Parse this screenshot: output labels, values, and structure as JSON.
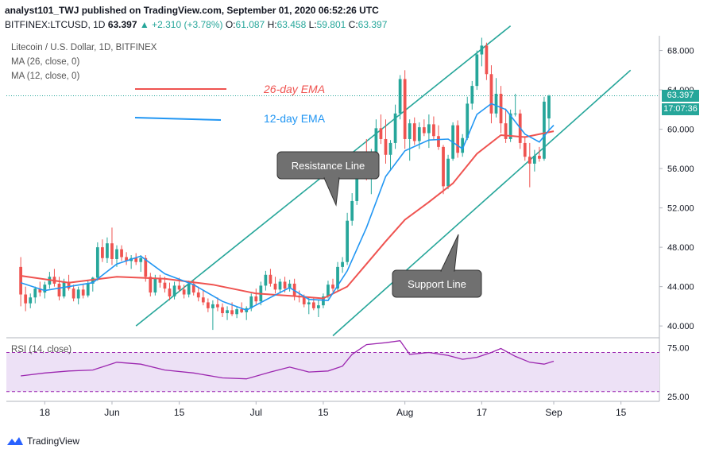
{
  "header": {
    "line1": "analyst101_TWJ published on TradingView.com, September 01, 2020 06:52:26 UTC",
    "symbol": "BITFINEX:LTCUSD, 1D",
    "price": "63.397",
    "change": "+2.310 (+3.78%)",
    "o_label": "O:",
    "o": "61.087",
    "h_label": "H:",
    "h": "63.458",
    "l_label": "L:",
    "l": "59.801",
    "c_label": "C:",
    "c": "63.397"
  },
  "legend": {
    "title": "Litecoin / U.S. Dollar, 1D, BITFINEX",
    "ma26": "MA (26, close, 0)",
    "ma12": "MA (12, close, 0)",
    "rsi": "RSI (14, close)"
  },
  "annotations": {
    "ema26": "26-day EMA",
    "ema12": "12-day EMA",
    "resistance": "Resistance Line",
    "support": "Support Line"
  },
  "tags": {
    "price": "63.397",
    "countdown": "17:07:36"
  },
  "footer": {
    "brand": "TradingView"
  },
  "colors": {
    "up": "#26a69a",
    "down": "#ef5350",
    "ema26": "#ef5350",
    "ema12": "#2196f3",
    "trendline": "#26a69a",
    "rsi": "#9c27b0",
    "rsi_band": "#e9dbf5",
    "callout": "#707070"
  },
  "chart_data": {
    "type": "candlestick",
    "price_axis": {
      "ticks": [
        "68.000",
        "64.000",
        "60.000",
        "56.000",
        "52.000",
        "48.000",
        "44.000",
        "40.000"
      ],
      "range": [
        38.8,
        69.5
      ]
    },
    "rsi_axis": {
      "ticks": [
        "75.00",
        "25.00"
      ],
      "range": [
        20,
        85
      ]
    },
    "x_ticks": [
      {
        "label": "18",
        "i": 5
      },
      {
        "label": "Jun",
        "i": 19
      },
      {
        "label": "15",
        "i": 33
      },
      {
        "label": "Jul",
        "i": 49
      },
      {
        "label": "15",
        "i": 63
      },
      {
        "label": "Aug",
        "i": 80
      },
      {
        "label": "17",
        "i": 96
      },
      {
        "label": "Sep",
        "i": 111
      },
      {
        "label": "15",
        "i": 125
      }
    ],
    "x_range": [
      -3,
      133
    ],
    "candles": [
      [
        46.0,
        47.0,
        42.0,
        43.2
      ],
      [
        43.2,
        44.0,
        41.5,
        42.3
      ],
      [
        42.3,
        43.3,
        41.8,
        42.9
      ],
      [
        42.9,
        44.0,
        42.3,
        43.8
      ],
      [
        43.8,
        44.5,
        43.0,
        43.4
      ],
      [
        43.4,
        44.5,
        42.8,
        44.2
      ],
      [
        44.2,
        45.5,
        43.8,
        45.0
      ],
      [
        45.0,
        45.8,
        44.0,
        44.3
      ],
      [
        44.3,
        45.0,
        42.6,
        43.0
      ],
      [
        43.0,
        44.8,
        42.8,
        44.5
      ],
      [
        44.5,
        45.2,
        43.6,
        43.8
      ],
      [
        43.8,
        44.2,
        42.5,
        42.8
      ],
      [
        42.8,
        44.0,
        42.2,
        43.7
      ],
      [
        43.7,
        44.3,
        42.8,
        43.1
      ],
      [
        43.1,
        44.6,
        42.9,
        44.3
      ],
      [
        44.3,
        45.0,
        43.5,
        44.9
      ],
      [
        44.9,
        48.5,
        44.6,
        48.0
      ],
      [
        48.0,
        48.8,
        46.5,
        46.9
      ],
      [
        46.9,
        49.0,
        46.4,
        48.4
      ],
      [
        48.4,
        50.0,
        46.2,
        46.8
      ],
      [
        46.8,
        48.2,
        46.0,
        47.8
      ],
      [
        47.8,
        48.2,
        46.6,
        47.0
      ],
      [
        47.0,
        47.5,
        46.2,
        46.6
      ],
      [
        46.6,
        47.2,
        45.8,
        46.9
      ],
      [
        46.9,
        47.4,
        46.2,
        46.5
      ],
      [
        46.5,
        47.2,
        45.5,
        46.9
      ],
      [
        46.9,
        47.2,
        44.5,
        45.0
      ],
      [
        45.0,
        45.4,
        43.0,
        43.4
      ],
      [
        43.4,
        45.2,
        43.1,
        44.9
      ],
      [
        44.9,
        45.2,
        43.9,
        44.4
      ],
      [
        44.4,
        45.0,
        43.4,
        43.8
      ],
      [
        43.8,
        44.4,
        42.6,
        43.0
      ],
      [
        43.0,
        44.5,
        42.7,
        44.1
      ],
      [
        44.1,
        44.9,
        43.5,
        43.7
      ],
      [
        43.7,
        44.2,
        42.8,
        43.2
      ],
      [
        43.2,
        44.6,
        42.9,
        44.3
      ],
      [
        44.3,
        44.7,
        43.1,
        43.4
      ],
      [
        43.4,
        44.0,
        42.5,
        42.9
      ],
      [
        42.9,
        43.6,
        42.1,
        42.4
      ],
      [
        42.4,
        42.8,
        41.4,
        41.8
      ],
      [
        41.8,
        42.6,
        39.6,
        42.2
      ],
      [
        42.2,
        42.9,
        41.5,
        41.9
      ],
      [
        41.9,
        42.3,
        40.9,
        41.3
      ],
      [
        41.3,
        42.0,
        40.6,
        41.6
      ],
      [
        41.6,
        42.4,
        41.0,
        41.2
      ],
      [
        41.2,
        42.0,
        40.8,
        41.7
      ],
      [
        41.7,
        42.4,
        41.3,
        41.4
      ],
      [
        41.4,
        42.0,
        40.6,
        41.8
      ],
      [
        41.8,
        43.3,
        41.5,
        43.0
      ],
      [
        43.0,
        43.8,
        42.2,
        42.5
      ],
      [
        42.5,
        44.5,
        42.1,
        44.1
      ],
      [
        44.1,
        45.6,
        43.6,
        45.2
      ],
      [
        45.2,
        45.8,
        44.0,
        44.3
      ],
      [
        44.3,
        45.0,
        43.3,
        43.7
      ],
      [
        43.7,
        44.8,
        43.3,
        44.5
      ],
      [
        44.5,
        45.0,
        43.4,
        43.8
      ],
      [
        43.8,
        44.7,
        43.5,
        44.3
      ],
      [
        44.3,
        44.8,
        42.6,
        43.0
      ],
      [
        43.0,
        43.6,
        42.4,
        42.9
      ],
      [
        42.9,
        43.2,
        41.9,
        42.2
      ],
      [
        42.2,
        43.0,
        41.2,
        42.4
      ],
      [
        42.4,
        42.8,
        41.6,
        41.8
      ],
      [
        41.8,
        42.6,
        40.9,
        42.1
      ],
      [
        42.1,
        43.3,
        41.8,
        43.0
      ],
      [
        43.0,
        44.6,
        42.8,
        44.2
      ],
      [
        44.2,
        44.8,
        43.5,
        43.8
      ],
      [
        43.8,
        46.5,
        43.6,
        46.0
      ],
      [
        46.0,
        47.0,
        45.4,
        46.5
      ],
      [
        46.5,
        51.5,
        46.2,
        50.7
      ],
      [
        50.7,
        53.5,
        50.2,
        52.7
      ],
      [
        52.7,
        56.5,
        52.3,
        55.9
      ],
      [
        55.9,
        57.5,
        55.0,
        56.9
      ],
      [
        56.9,
        59.0,
        54.8,
        55.8
      ],
      [
        55.8,
        58.0,
        53.4,
        57.5
      ],
      [
        57.5,
        61.0,
        57.0,
        60.1
      ],
      [
        60.1,
        61.5,
        58.5,
        59.0
      ],
      [
        59.0,
        61.0,
        56.5,
        57.4
      ],
      [
        57.4,
        58.9,
        55.8,
        58.6
      ],
      [
        58.6,
        62.5,
        58.0,
        61.6
      ],
      [
        61.6,
        65.5,
        61.0,
        65.1
      ],
      [
        65.1,
        66.0,
        58.0,
        59.0
      ],
      [
        59.0,
        61.0,
        56.8,
        60.6
      ],
      [
        60.6,
        61.2,
        58.4,
        58.8
      ],
      [
        58.8,
        60.7,
        58.0,
        60.2
      ],
      [
        60.2,
        61.0,
        59.3,
        59.6
      ],
      [
        59.6,
        61.5,
        58.1,
        60.5
      ],
      [
        60.5,
        61.3,
        58.9,
        59.3
      ],
      [
        59.3,
        60.4,
        57.9,
        58.2
      ],
      [
        58.2,
        58.4,
        53.4,
        54.2
      ],
      [
        54.2,
        57.4,
        53.9,
        57.0
      ],
      [
        57.0,
        60.7,
        56.8,
        60.4
      ],
      [
        60.4,
        60.9,
        57.1,
        57.6
      ],
      [
        57.6,
        59.5,
        57.2,
        59.1
      ],
      [
        59.1,
        63.3,
        58.9,
        62.6
      ],
      [
        62.6,
        64.9,
        62.0,
        64.4
      ],
      [
        64.4,
        68.0,
        64.0,
        67.6
      ],
      [
        67.6,
        69.3,
        66.4,
        68.5
      ],
      [
        68.5,
        68.8,
        65.0,
        65.6
      ],
      [
        65.6,
        66.5,
        60.6,
        61.6
      ],
      [
        61.6,
        65.2,
        61.2,
        63.6
      ],
      [
        63.6,
        64.4,
        59.6,
        60.6
      ],
      [
        60.6,
        62.1,
        58.6,
        59.0
      ],
      [
        59.0,
        62.0,
        58.7,
        61.6
      ],
      [
        61.6,
        63.6,
        61.3,
        61.6
      ],
      [
        61.6,
        62.0,
        58.0,
        58.6
      ],
      [
        58.6,
        59.3,
        56.8,
        57.2
      ],
      [
        57.2,
        58.6,
        54.1,
        56.5
      ],
      [
        56.5,
        57.9,
        55.7,
        57.3
      ],
      [
        57.3,
        58.2,
        56.7,
        57.0
      ],
      [
        57.0,
        63.3,
        56.8,
        62.8
      ],
      [
        61.1,
        63.5,
        59.8,
        63.4
      ]
    ],
    "ema26": [
      [
        0,
        45.1
      ],
      [
        10,
        44.4
      ],
      [
        20,
        45.0
      ],
      [
        30,
        44.8
      ],
      [
        40,
        44.2
      ],
      [
        49,
        43.3
      ],
      [
        58,
        43.0
      ],
      [
        63,
        42.8
      ],
      [
        68,
        44.0
      ],
      [
        72,
        46.3
      ],
      [
        76,
        48.6
      ],
      [
        80,
        50.8
      ],
      [
        85,
        52.6
      ],
      [
        90,
        54.5
      ],
      [
        95,
        57.5
      ],
      [
        100,
        59.4
      ],
      [
        105,
        59.2
      ],
      [
        111,
        59.8
      ]
    ],
    "ema12": [
      [
        0,
        44.4
      ],
      [
        5,
        43.6
      ],
      [
        10,
        44.0
      ],
      [
        15,
        44.4
      ],
      [
        20,
        46.3
      ],
      [
        25,
        47.1
      ],
      [
        30,
        45.3
      ],
      [
        36,
        44.2
      ],
      [
        42,
        42.5
      ],
      [
        47,
        41.6
      ],
      [
        52,
        42.9
      ],
      [
        56,
        43.9
      ],
      [
        60,
        42.7
      ],
      [
        64,
        42.6
      ],
      [
        68,
        45.6
      ],
      [
        72,
        50.0
      ],
      [
        76,
        55.2
      ],
      [
        80,
        57.8
      ],
      [
        85,
        58.9
      ],
      [
        89,
        59.0
      ],
      [
        92,
        58.0
      ],
      [
        95,
        61.5
      ],
      [
        98,
        62.6
      ],
      [
        101,
        62.0
      ],
      [
        105,
        59.5
      ],
      [
        108,
        58.7
      ],
      [
        110,
        59.9
      ],
      [
        111,
        60.4
      ]
    ],
    "resistance_line": [
      [
        24,
        40.0
      ],
      [
        102,
        70.5
      ]
    ],
    "support_line": [
      [
        65,
        39.0
      ],
      [
        127,
        66.0
      ]
    ],
    "rsi": [
      [
        0,
        46
      ],
      [
        5,
        49
      ],
      [
        10,
        51
      ],
      [
        15,
        52
      ],
      [
        20,
        60
      ],
      [
        25,
        58
      ],
      [
        30,
        52
      ],
      [
        36,
        49
      ],
      [
        42,
        44
      ],
      [
        47,
        43
      ],
      [
        52,
        50
      ],
      [
        56,
        55
      ],
      [
        60,
        50
      ],
      [
        64,
        51
      ],
      [
        67,
        56
      ],
      [
        69,
        68
      ],
      [
        72,
        78
      ],
      [
        76,
        80
      ],
      [
        79,
        82
      ],
      [
        81,
        68
      ],
      [
        85,
        70
      ],
      [
        89,
        67
      ],
      [
        92,
        63
      ],
      [
        95,
        65
      ],
      [
        98,
        70
      ],
      [
        100,
        74
      ],
      [
        103,
        66
      ],
      [
        106,
        60
      ],
      [
        109,
        58
      ],
      [
        111,
        61
      ]
    ]
  }
}
